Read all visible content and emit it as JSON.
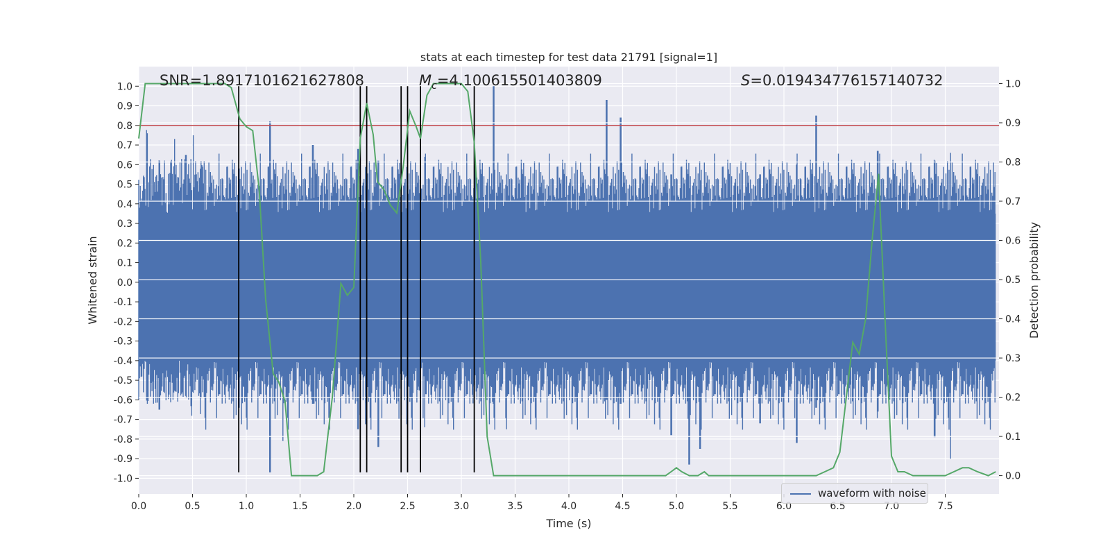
{
  "chart_data": {
    "type": "line",
    "title": "stats at each timestep for test data 21791 [signal=1]",
    "xlabel": "Time (s)",
    "ylabel_left": "Whitened strain",
    "ylabel_right": "Detection probability",
    "xlim": [
      0.0,
      8.0
    ],
    "ylim_left": [
      -1.08,
      1.1
    ],
    "ylim_right": [
      -0.0467,
      1.0433
    ],
    "x_ticks": [
      0.0,
      0.5,
      1.0,
      1.5,
      2.0,
      2.5,
      3.0,
      3.5,
      4.0,
      4.5,
      5.0,
      5.5,
      6.0,
      6.5,
      7.0,
      7.5
    ],
    "x_tick_labels": [
      "0.0",
      "0.5",
      "1.0",
      "1.5",
      "2.0",
      "2.5",
      "3.0",
      "3.5",
      "4.0",
      "4.5",
      "5.0",
      "5.5",
      "6.0",
      "6.5",
      "7.0",
      "7.5"
    ],
    "y_left_ticks": [
      -1.0,
      -0.9,
      -0.8,
      -0.7,
      -0.6,
      -0.5,
      -0.4,
      -0.3,
      -0.2,
      -0.1,
      0.0,
      0.1,
      0.2,
      0.3,
      0.4,
      0.5,
      0.6,
      0.7,
      0.8,
      0.9,
      1.0
    ],
    "y_left_tick_labels": [
      "-1.0",
      "-0.9",
      "-0.8",
      "-0.7",
      "-0.6",
      "-0.5",
      "-0.4",
      "-0.3",
      "-0.2",
      "-0.1",
      "0.0",
      "0.1",
      "0.2",
      "0.3",
      "0.4",
      "0.5",
      "0.6",
      "0.7",
      "0.8",
      "0.9",
      "1.0"
    ],
    "y_right_ticks": [
      0.0,
      0.1,
      0.2,
      0.3,
      0.4,
      0.5,
      0.6,
      0.7,
      0.8,
      0.9,
      1.0
    ],
    "y_right_tick_labels": [
      "0.0",
      "0.1",
      "0.2",
      "0.3",
      "0.4",
      "0.5",
      "0.6",
      "0.7",
      "0.8",
      "0.9",
      "1.0"
    ],
    "annotations": {
      "snr": "SNR=1.8917101621627808",
      "mc_symbol": "M",
      "mc_sub": "c",
      "mc_value": "=4.100615501403809",
      "s_symbol": "S",
      "s_value": "=0.019434776157140732"
    },
    "threshold": {
      "y": 0.8,
      "color": "#c44e52"
    },
    "vlines": [
      0.93,
      2.06,
      2.12,
      2.44,
      2.5,
      2.62,
      3.12
    ],
    "vline_range": [
      -0.97,
      1.0
    ],
    "waveform": {
      "name": "waveform with noise",
      "color": "#4c72b0",
      "sample_rate_hz": 2048,
      "envelope": [
        0.35,
        -0.4
      ],
      "peaks": [
        [
          0.0,
          0.5,
          -0.6
        ],
        [
          0.08,
          0.76,
          -0.62
        ],
        [
          0.19,
          0.62,
          -0.65
        ],
        [
          0.44,
          0.65,
          -0.58
        ],
        [
          0.93,
          0.58,
          -0.64
        ],
        [
          1.22,
          0.82,
          -0.97
        ],
        [
          1.34,
          0.45,
          -0.81
        ],
        [
          1.62,
          0.7,
          -0.62
        ],
        [
          2.04,
          0.68,
          -0.75
        ],
        [
          2.23,
          0.62,
          -0.84
        ],
        [
          2.66,
          0.64,
          -0.74
        ],
        [
          3.3,
          1.0,
          -0.62
        ],
        [
          3.42,
          0.55,
          -0.75
        ],
        [
          4.35,
          0.93,
          -0.6
        ],
        [
          4.48,
          0.84,
          -0.62
        ],
        [
          4.95,
          0.55,
          -0.78
        ],
        [
          5.12,
          0.48,
          -0.93
        ],
        [
          5.22,
          0.52,
          -0.85
        ],
        [
          5.78,
          0.55,
          -0.72
        ],
        [
          6.12,
          0.6,
          -0.82
        ],
        [
          6.3,
          0.85,
          -0.64
        ],
        [
          6.87,
          0.67,
          -0.66
        ],
        [
          7.4,
          0.62,
          -0.79
        ],
        [
          7.55,
          0.66,
          -0.9
        ],
        [
          7.97,
          0.67,
          -0.48
        ]
      ]
    },
    "detection_probability": {
      "color": "#55a868",
      "x": [
        0.0,
        0.06,
        0.12,
        0.2,
        0.3,
        0.4,
        0.5,
        0.6,
        0.7,
        0.8,
        0.86,
        0.94,
        1.0,
        1.06,
        1.12,
        1.18,
        1.25,
        1.3,
        1.36,
        1.42,
        1.5,
        1.58,
        1.66,
        1.72,
        1.8,
        1.88,
        1.94,
        2.0,
        2.06,
        2.12,
        2.18,
        2.22,
        2.28,
        2.34,
        2.4,
        2.46,
        2.52,
        2.58,
        2.62,
        2.68,
        2.74,
        2.8,
        2.9,
        3.0,
        3.06,
        3.12,
        3.18,
        3.24,
        3.3,
        3.36,
        3.42,
        3.5,
        3.6,
        3.7,
        3.8,
        3.9,
        4.0,
        4.1,
        4.2,
        4.3,
        4.4,
        4.5,
        4.6,
        4.7,
        4.8,
        4.9,
        4.95,
        5.0,
        5.05,
        5.12,
        5.2,
        5.26,
        5.3,
        5.4,
        5.5,
        5.6,
        5.7,
        5.8,
        5.9,
        6.0,
        6.1,
        6.2,
        6.3,
        6.38,
        6.46,
        6.52,
        6.58,
        6.64,
        6.7,
        6.76,
        6.82,
        6.88,
        6.94,
        7.0,
        7.06,
        7.12,
        7.2,
        7.3,
        7.4,
        7.5,
        7.58,
        7.66,
        7.72,
        7.8,
        7.9,
        7.97
      ],
      "y": [
        0.86,
        1.0,
        1.0,
        1.0,
        1.0,
        1.0,
        1.0,
        1.0,
        1.0,
        1.0,
        0.99,
        0.91,
        0.89,
        0.88,
        0.73,
        0.45,
        0.26,
        0.24,
        0.19,
        0.0,
        0.0,
        0.0,
        0.0,
        0.01,
        0.2,
        0.49,
        0.46,
        0.48,
        0.86,
        0.95,
        0.87,
        0.75,
        0.73,
        0.69,
        0.67,
        0.79,
        0.93,
        0.89,
        0.86,
        0.97,
        1.0,
        1.0,
        1.0,
        1.0,
        0.98,
        0.85,
        0.55,
        0.1,
        0.0,
        0.0,
        0.0,
        0.0,
        0.0,
        0.0,
        0.0,
        0.0,
        0.0,
        0.0,
        0.0,
        0.0,
        0.0,
        0.0,
        0.0,
        0.0,
        0.0,
        0.0,
        0.01,
        0.02,
        0.01,
        0.0,
        0.0,
        0.01,
        0.0,
        0.0,
        0.0,
        0.0,
        0.0,
        0.0,
        0.0,
        0.0,
        0.0,
        0.0,
        0.0,
        0.01,
        0.02,
        0.06,
        0.2,
        0.34,
        0.31,
        0.4,
        0.6,
        0.77,
        0.4,
        0.05,
        0.01,
        0.01,
        0.0,
        0.0,
        0.0,
        0.0,
        0.01,
        0.02,
        0.02,
        0.01,
        0.0,
        0.01
      ]
    }
  }
}
